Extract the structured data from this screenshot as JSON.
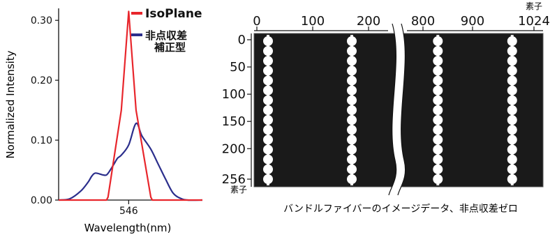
{
  "chart_data": [
    {
      "type": "line",
      "xlabel": "Wavelength(nm)",
      "ylabel": "Normalized Intensity",
      "ylim": [
        0,
        0.32
      ],
      "yticks": [
        "0.00",
        "0.10",
        "0.20",
        "0.30"
      ],
      "yticks_values": [
        0,
        0.1,
        0.2,
        0.3
      ],
      "xticks": [
        "546"
      ],
      "xticks_values": [
        546
      ],
      "xlim": [
        536.5,
        556.0
      ],
      "legend_position": "top-right",
      "series": [
        {
          "name": "IsoPlane",
          "color": "#e8262c",
          "x": [
            536.5,
            543.0,
            543.2,
            545.0,
            546.0,
            547.0,
            549.0,
            549.2,
            556.0
          ],
          "y": [
            0.0,
            0.0,
            0.005,
            0.15,
            0.315,
            0.15,
            0.005,
            0.0,
            0.0
          ]
        },
        {
          "name": "非点収差補正型",
          "color": "#2b2e8c",
          "x": [
            536.5,
            538.0,
            539.5,
            540.5,
            541.0,
            541.5,
            542.5,
            543.0,
            543.5,
            544.0,
            544.5,
            545.0,
            546.0,
            547.0,
            547.8,
            549.0,
            550.0,
            551.0,
            552.0,
            553.0,
            554.0,
            556.0
          ],
          "y": [
            0.0,
            0.002,
            0.015,
            0.03,
            0.04,
            0.045,
            0.042,
            0.042,
            0.05,
            0.06,
            0.07,
            0.075,
            0.092,
            0.128,
            0.107,
            0.085,
            0.06,
            0.035,
            0.012,
            0.003,
            0.0,
            0.0
          ]
        }
      ]
    },
    {
      "type": "image",
      "top_axis_ticks": [
        "0",
        "100",
        "200",
        "800",
        "900",
        "1024"
      ],
      "top_axis_values": [
        0,
        100,
        200,
        800,
        900,
        1024
      ],
      "top_axis_unit": "素子",
      "left_axis_ticks": [
        "0",
        "50",
        "100",
        "150",
        "200",
        "256"
      ],
      "left_axis_values": [
        0,
        50,
        100,
        150,
        200,
        256
      ],
      "left_axis_unit": "素子",
      "fiber_columns_x": [
        20,
        170,
        830,
        980
      ],
      "fiber_spots_per_column": 15,
      "caption": "バンドルファイバーのイメージデータ、非点収差ゼロ"
    }
  ]
}
